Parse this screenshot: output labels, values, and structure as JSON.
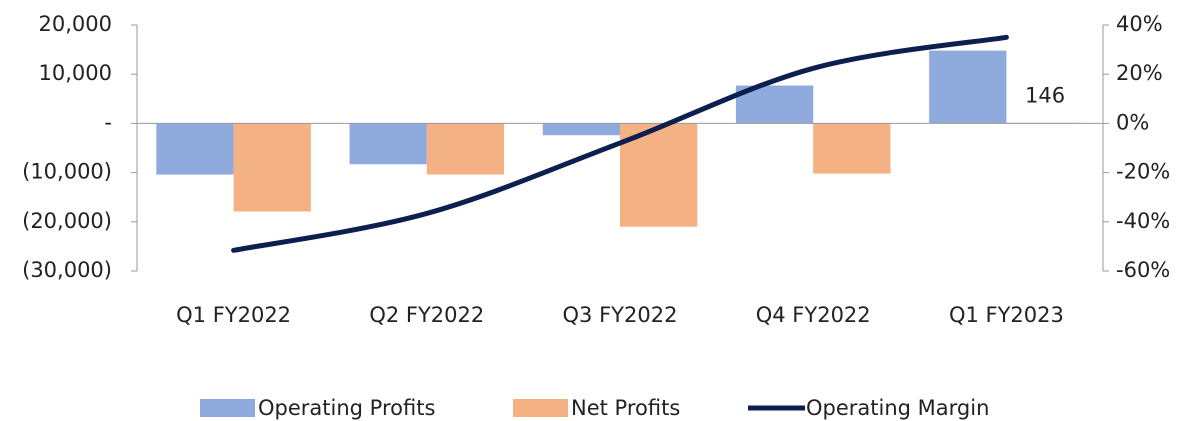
{
  "chart_data": {
    "type": "bar_line",
    "categories": [
      "Q1 FY2022",
      "Q2 FY2022",
      "Q3 FY2022",
      "Q4 FY2022",
      "Q1 FY2023"
    ],
    "series": [
      {
        "name": "Operating Profits",
        "color": "#8faadc",
        "type": "bar",
        "values": [
          -10400,
          -8300,
          -2400,
          7700,
          14800
        ]
      },
      {
        "name": "Net Profits",
        "color": "#f4b183",
        "type": "bar",
        "values": [
          -17900,
          -10400,
          -21000,
          -10200,
          146
        ],
        "value_labels": [
          null,
          null,
          null,
          null,
          "146"
        ]
      },
      {
        "name": "Operating Margin",
        "color": "#0d1f4f",
        "type": "line",
        "axis": "y2",
        "values": [
          -51.6,
          -36.6,
          -8,
          22.4,
          35
        ]
      }
    ],
    "ylim": [
      -30000,
      20000
    ],
    "yticks": [
      {
        "value": -30000,
        "label": "(30,000)"
      },
      {
        "value": -20000,
        "label": "(20,000)"
      },
      {
        "value": -10000,
        "label": "(10,000)"
      },
      {
        "value": 0,
        "label": "-"
      },
      {
        "value": 10000,
        "label": "10,000"
      },
      {
        "value": 20000,
        "label": "20,000"
      }
    ],
    "y2lim": [
      -60,
      40
    ],
    "y2ticks": [
      {
        "value": -60,
        "label": "-60%"
      },
      {
        "value": -40,
        "label": "-40%"
      },
      {
        "value": -20,
        "label": "-20%"
      },
      {
        "value": 0,
        "label": "0%"
      },
      {
        "value": 20,
        "label": "20%"
      },
      {
        "value": 40,
        "label": "40%"
      }
    ],
    "legend": "bottom"
  }
}
